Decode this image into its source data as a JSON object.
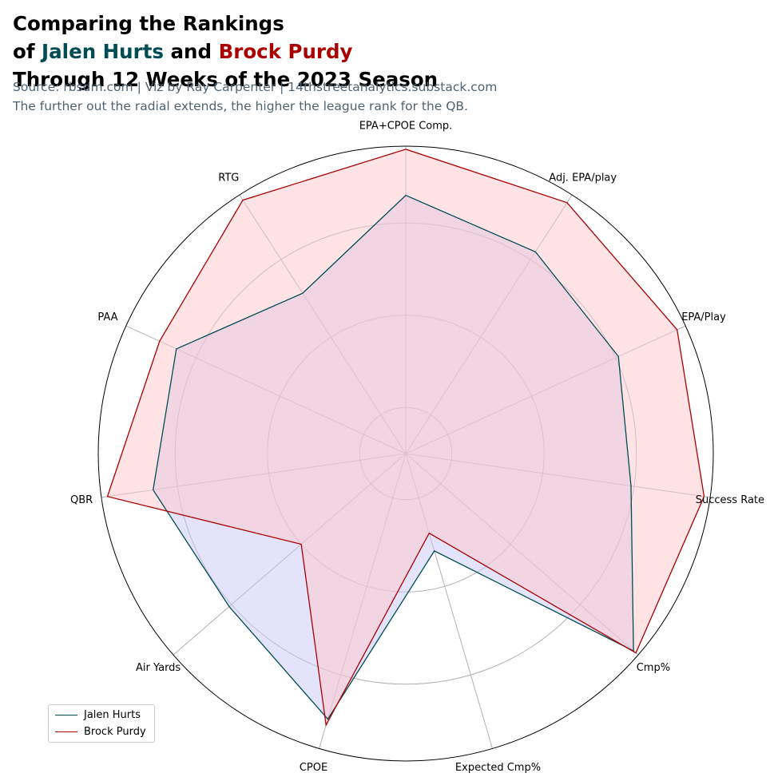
{
  "title": {
    "line1": "Comparing the Rankings",
    "line2_prefix": "of ",
    "player1": "Jalen Hurts",
    "conj": " and ",
    "player2": "Brock Purdy",
    "line3": "Through 12 Weeks of the 2023 Season"
  },
  "source": "Source: rbsdm.com | Viz by Ray Carpenter | 14thstreetanalytics.substack.com",
  "note": "The further out the radial extends, the higher the league rank for the QB.",
  "colors": {
    "hurts_line": "#004C54",
    "hurts_fill": "#C8C8F8",
    "purdy_line": "#AA0000",
    "purdy_fill": "#FFC8CC",
    "grid": "#B0B0B0",
    "title_sub": "#4e6272"
  },
  "chart_data": {
    "type": "radar",
    "categories": [
      "EPA+CPOE Comp.",
      "Adj. EPA/play",
      "EPA/Play",
      "Success Rate",
      "Cmp%",
      "Expected Cmp%",
      "CPOE",
      "Air Yards",
      "QBR",
      "PAA",
      "RTG"
    ],
    "series": [
      {
        "name": "Jalen Hurts",
        "values": [
          0.84,
          0.78,
          0.76,
          0.74,
          0.98,
          0.33,
          0.9,
          0.76,
          0.83,
          0.82,
          0.62
        ]
      },
      {
        "name": "Brock Purdy",
        "values": [
          0.99,
          0.97,
          0.97,
          0.98,
          0.99,
          0.27,
          0.92,
          0.45,
          0.98,
          0.88,
          0.98
        ]
      }
    ],
    "rlim": [
      0,
      1
    ],
    "rings": [
      0.15,
      0.45,
      0.75,
      1.0
    ],
    "legend": "lower-left",
    "grid": true
  }
}
